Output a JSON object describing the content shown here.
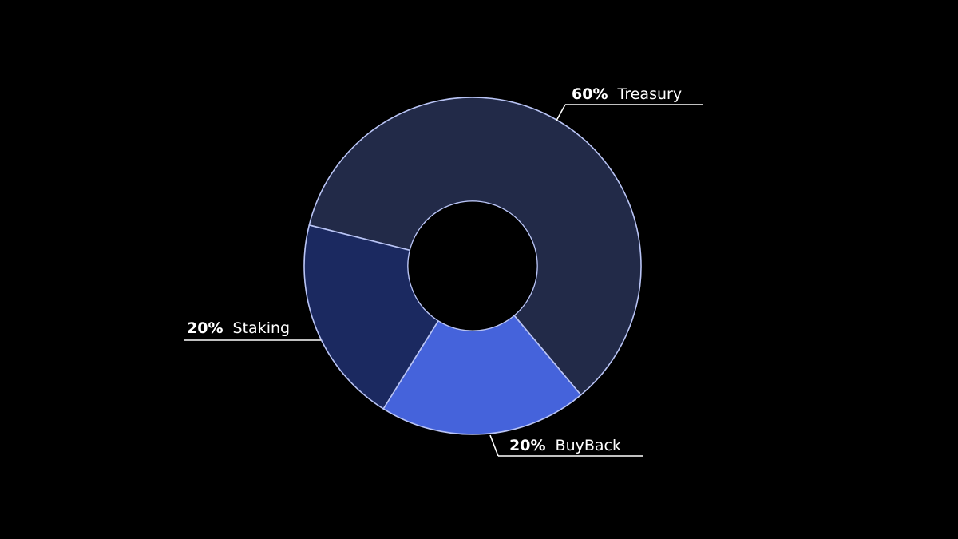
{
  "chart_data": {
    "type": "pie",
    "donut": true,
    "slices": [
      {
        "label": "Treasury",
        "value": 60,
        "percent_label": "60%",
        "color": "#222a48"
      },
      {
        "label": "BuyBack",
        "value": 20,
        "percent_label": "20%",
        "color": "#4563db"
      },
      {
        "label": "Staking",
        "value": 20,
        "percent_label": "20%",
        "color": "#1b2960"
      }
    ],
    "outline_color": "#b9c4f5",
    "leader_color": "#ffffff",
    "legend": "none"
  }
}
